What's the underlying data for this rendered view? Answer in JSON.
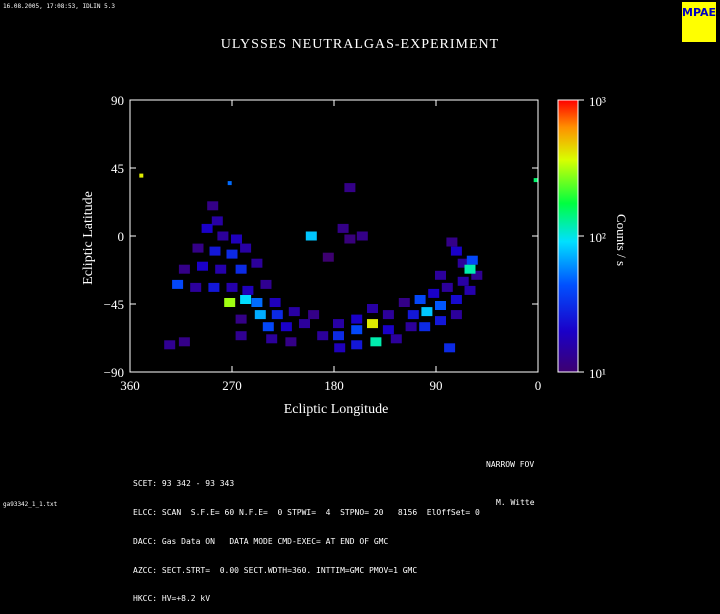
{
  "header": {
    "timestamp": "16.08.2005, 17:08:53, IDLIN 5.3",
    "title": "ULYSSES NEUTRALGAS-EXPERIMENT",
    "logo_text": "MPAE"
  },
  "colorbar": {
    "label": "Counts / s",
    "ticks": [
      "10³",
      "10²",
      "10¹"
    ],
    "range": [
      10,
      1000
    ],
    "scale": "log",
    "colormap": "rainbow (purple → blue → cyan → green → yellow → red)"
  },
  "footer": {
    "lines": [
      "SCET: 93 342 - 93 343",
      "ELCC: SCAN  S.F.E= 60 N.F.E=  0 STPWI=  4  STPNO= 20   8156  ElOffSet= 0",
      "DACC: Gas Data ON   DATA MODE CMD-EXEC= AT END OF GMC",
      "AZCC: SECT.STRT=  0.00 SECT.WDTH=360. INTTIM=GMC PMOV=1 GMC",
      "HKCC: HV=+8.2 kV"
    ],
    "fov": "NARROW FOV",
    "author": "M. Witte",
    "filename": "ga93342_1_1.txt"
  },
  "chart_data": {
    "type": "heatmap",
    "xlabel": "Ecliptic Longitude",
    "ylabel": "Ecliptic Latitude",
    "xlim": [
      360,
      0
    ],
    "ylim": [
      -90,
      90
    ],
    "xticks": [
      360,
      270,
      180,
      90,
      0
    ],
    "yticks": [
      90,
      45,
      0,
      -45,
      -90
    ],
    "grid": false,
    "value_units": "Counts / s",
    "cells": [
      {
        "lon": 350,
        "lat": 40,
        "value": 400
      },
      {
        "lon": 272,
        "lat": 35,
        "value": 50
      },
      {
        "lon": 2,
        "lat": 37,
        "value": 150
      },
      {
        "lon": 172,
        "lat": 5,
        "value": 12
      },
      {
        "lon": 166,
        "lat": -2,
        "value": 11
      },
      {
        "lon": 200,
        "lat": 0,
        "value": 80
      },
      {
        "lon": 185,
        "lat": -14,
        "value": 10
      },
      {
        "lon": 155,
        "lat": 0,
        "value": 12
      },
      {
        "lon": 287,
        "lat": 20,
        "value": 12
      },
      {
        "lon": 283,
        "lat": 10,
        "value": 15
      },
      {
        "lon": 292,
        "lat": 5,
        "value": 20
      },
      {
        "lon": 278,
        "lat": 0,
        "value": 14
      },
      {
        "lon": 300,
        "lat": -8,
        "value": 12
      },
      {
        "lon": 285,
        "lat": -10,
        "value": 25
      },
      {
        "lon": 266,
        "lat": -2,
        "value": 18
      },
      {
        "lon": 270,
        "lat": -12,
        "value": 30
      },
      {
        "lon": 258,
        "lat": -8,
        "value": 15
      },
      {
        "lon": 312,
        "lat": -22,
        "value": 12
      },
      {
        "lon": 296,
        "lat": -20,
        "value": 20
      },
      {
        "lon": 280,
        "lat": -22,
        "value": 16
      },
      {
        "lon": 262,
        "lat": -22,
        "value": 30
      },
      {
        "lon": 248,
        "lat": -18,
        "value": 14
      },
      {
        "lon": 318,
        "lat": -32,
        "value": 40
      },
      {
        "lon": 302,
        "lat": -34,
        "value": 14
      },
      {
        "lon": 286,
        "lat": -34,
        "value": 25
      },
      {
        "lon": 270,
        "lat": -34,
        "value": 16
      },
      {
        "lon": 256,
        "lat": -36,
        "value": 18
      },
      {
        "lon": 240,
        "lat": -32,
        "value": 13
      },
      {
        "lon": 272,
        "lat": -44,
        "value": 300
      },
      {
        "lon": 258,
        "lat": -42,
        "value": 90
      },
      {
        "lon": 248,
        "lat": -44,
        "value": 50
      },
      {
        "lon": 232,
        "lat": -44,
        "value": 18
      },
      {
        "lon": 245,
        "lat": -52,
        "value": 70
      },
      {
        "lon": 230,
        "lat": -52,
        "value": 30
      },
      {
        "lon": 215,
        "lat": -50,
        "value": 15
      },
      {
        "lon": 238,
        "lat": -60,
        "value": 40
      },
      {
        "lon": 222,
        "lat": -60,
        "value": 20
      },
      {
        "lon": 206,
        "lat": -58,
        "value": 14
      },
      {
        "lon": 235,
        "lat": -68,
        "value": 14
      },
      {
        "lon": 218,
        "lat": -70,
        "value": 12
      },
      {
        "lon": 262,
        "lat": -55,
        "value": 12
      },
      {
        "lon": 262,
        "lat": -66,
        "value": 13
      },
      {
        "lon": 325,
        "lat": -72,
        "value": 13
      },
      {
        "lon": 312,
        "lat": -70,
        "value": 12
      },
      {
        "lon": 198,
        "lat": -52,
        "value": 12
      },
      {
        "lon": 190,
        "lat": -66,
        "value": 14
      },
      {
        "lon": 176,
        "lat": -58,
        "value": 15
      },
      {
        "lon": 176,
        "lat": -66,
        "value": 30
      },
      {
        "lon": 160,
        "lat": -55,
        "value": 20
      },
      {
        "lon": 160,
        "lat": -62,
        "value": 40
      },
      {
        "lon": 146,
        "lat": -58,
        "value": 400
      },
      {
        "lon": 146,
        "lat": -48,
        "value": 15
      },
      {
        "lon": 132,
        "lat": -52,
        "value": 14
      },
      {
        "lon": 132,
        "lat": -62,
        "value": 20
      },
      {
        "lon": 175,
        "lat": -74,
        "value": 18
      },
      {
        "lon": 160,
        "lat": -72,
        "value": 25
      },
      {
        "lon": 143,
        "lat": -70,
        "value": 120
      },
      {
        "lon": 125,
        "lat": -68,
        "value": 14
      },
      {
        "lon": 118,
        "lat": -44,
        "value": 12
      },
      {
        "lon": 104,
        "lat": -42,
        "value": 40
      },
      {
        "lon": 92,
        "lat": -38,
        "value": 20
      },
      {
        "lon": 80,
        "lat": -34,
        "value": 14
      },
      {
        "lon": 66,
        "lat": -30,
        "value": 15
      },
      {
        "lon": 54,
        "lat": -26,
        "value": 13
      },
      {
        "lon": 110,
        "lat": -52,
        "value": 25
      },
      {
        "lon": 98,
        "lat": -50,
        "value": 80
      },
      {
        "lon": 86,
        "lat": -46,
        "value": 45
      },
      {
        "lon": 72,
        "lat": -42,
        "value": 22
      },
      {
        "lon": 60,
        "lat": -36,
        "value": 16
      },
      {
        "lon": 112,
        "lat": -60,
        "value": 14
      },
      {
        "lon": 100,
        "lat": -60,
        "value": 30
      },
      {
        "lon": 86,
        "lat": -56,
        "value": 25
      },
      {
        "lon": 72,
        "lat": -52,
        "value": 14
      },
      {
        "lon": 66,
        "lat": -18,
        "value": 14
      },
      {
        "lon": 72,
        "lat": -10,
        "value": 20
      },
      {
        "lon": 76,
        "lat": -4,
        "value": 12
      },
      {
        "lon": 58,
        "lat": -16,
        "value": 40
      },
      {
        "lon": 60,
        "lat": -22,
        "value": 120
      },
      {
        "lon": 86,
        "lat": -26,
        "value": 14
      },
      {
        "lon": 78,
        "lat": -74,
        "value": 30
      },
      {
        "lon": 166,
        "lat": 32,
        "value": 12
      }
    ]
  }
}
